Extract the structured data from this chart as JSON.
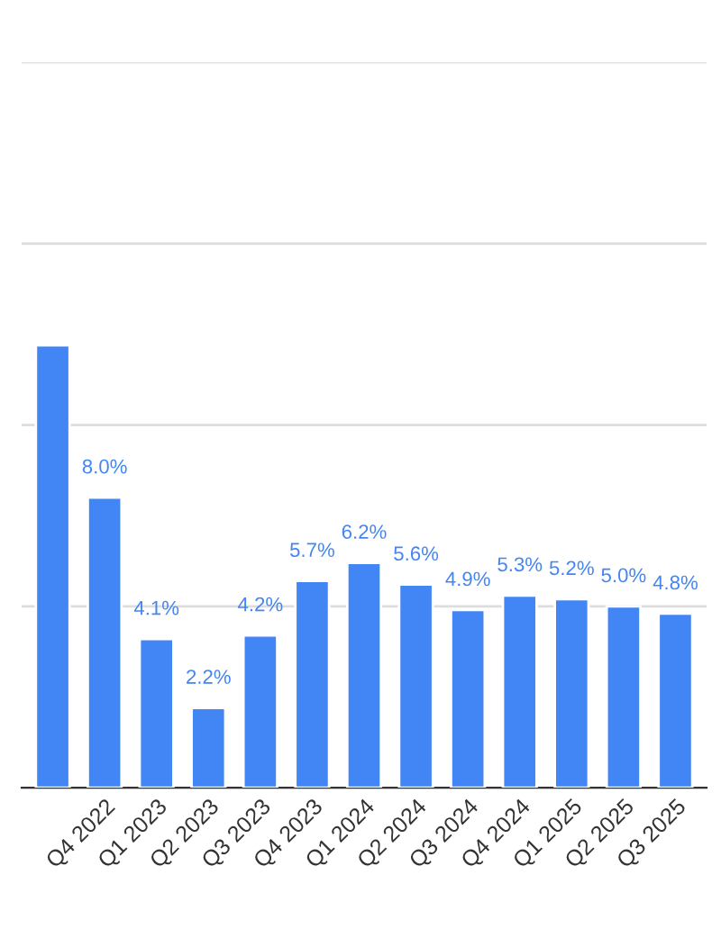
{
  "chart_data": {
    "type": "bar",
    "categories": [
      null,
      "Q4 2022",
      "Q1 2023",
      "Q2 2023",
      "Q3 2023",
      "Q4 2023",
      "Q1 2024",
      "Q2 2024",
      "Q3 2024",
      "Q4 2024",
      "Q1 2025",
      "Q2 2025",
      "Q3 2025"
    ],
    "values": [
      12.2,
      8.0,
      4.1,
      2.2,
      4.2,
      5.7,
      6.2,
      5.6,
      4.9,
      5.3,
      5.2,
      5.0,
      4.8
    ],
    "value_labels": [
      null,
      "8.0%",
      "4.1%",
      "2.2%",
      "4.2%",
      "5.7%",
      "6.2%",
      "5.6%",
      "4.9%",
      "5.3%",
      "5.2%",
      "5.0%",
      "4.8%"
    ],
    "color": "#4285f4",
    "ylim": [
      0,
      20
    ],
    "yticks": [
      {
        "value": 0,
        "label": null
      },
      {
        "value": 5,
        "label": null
      },
      {
        "value": 10,
        "label": null
      },
      {
        "value": 15,
        "label": null
      },
      {
        "value": 20,
        "label": null
      }
    ],
    "grid": "y",
    "tick_labels": "x"
  }
}
